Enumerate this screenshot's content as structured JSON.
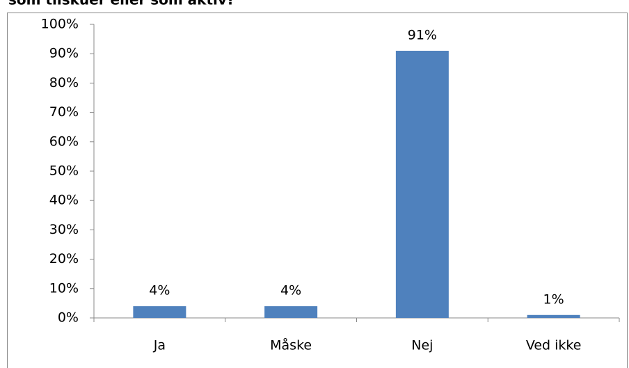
{
  "chart_data": {
    "type": "bar",
    "title": "som tilskuer eller som aktiv?",
    "categories": [
      "Ja",
      "Måske",
      "Nej",
      "Ved ikke"
    ],
    "values": [
      4,
      4,
      91,
      1
    ],
    "value_labels": [
      "4%",
      "4%",
      "91%",
      "1%"
    ],
    "color": "#4f81bd",
    "ylim": [
      0,
      100
    ],
    "yticks": [
      {
        "value": 0,
        "label": "0%"
      },
      {
        "value": 10,
        "label": "10%"
      },
      {
        "value": 20,
        "label": "20%"
      },
      {
        "value": 30,
        "label": "30%"
      },
      {
        "value": 40,
        "label": "40%"
      },
      {
        "value": 50,
        "label": "50%"
      },
      {
        "value": 60,
        "label": "60%"
      },
      {
        "value": 70,
        "label": "70%"
      },
      {
        "value": 80,
        "label": "80%"
      },
      {
        "value": 90,
        "label": "90%"
      },
      {
        "value": 100,
        "label": "100%"
      }
    ],
    "grid": false
  }
}
